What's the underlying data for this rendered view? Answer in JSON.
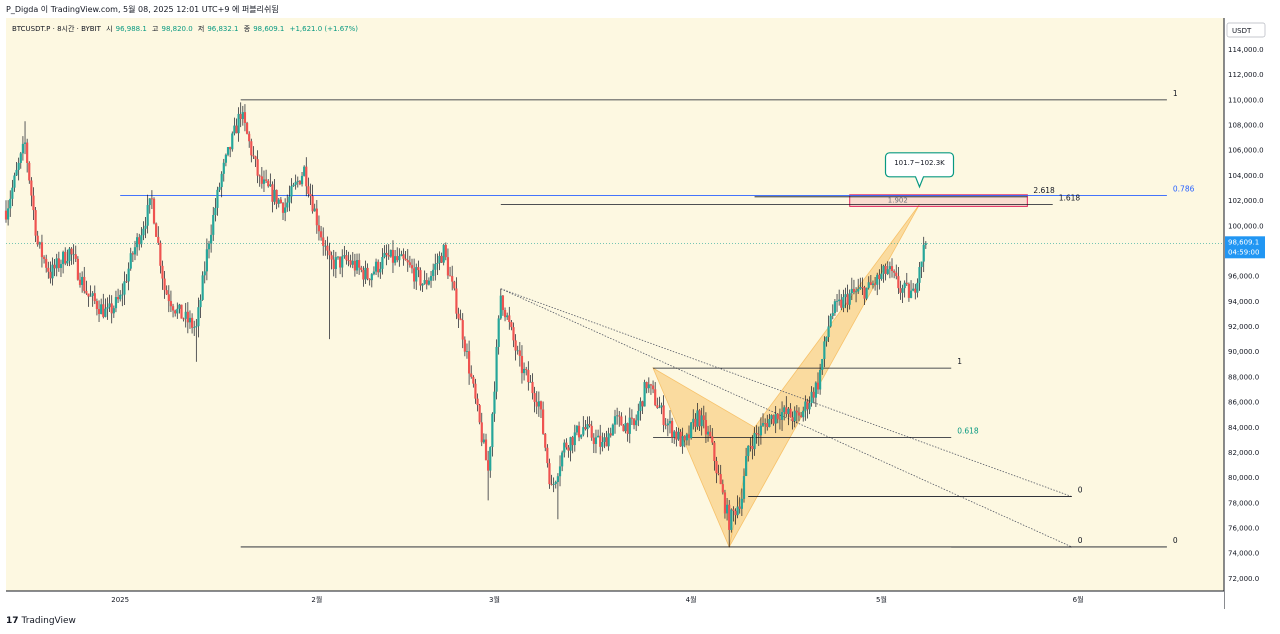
{
  "header": {
    "publish_line": "P_Digda 이 TradingView.com, 5월 08, 2025 12:01 UTC+9 에 퍼블리쉬됨"
  },
  "symbol": {
    "name": "BTCUSDT.P · 8시간 · BYBIT",
    "open_label": "시",
    "open": "96,988.1",
    "high_label": "고",
    "high": "98,820.0",
    "low_label": "저",
    "low": "96,832.1",
    "close_label": "종",
    "close": "98,609.1",
    "change": "+1,621.0 (+1.67%)"
  },
  "footer": {
    "logo_text": "TradingView",
    "logo_mark": "17"
  },
  "colors": {
    "background": "#fdf8e1",
    "up": "#26a69a",
    "down": "#ef5350",
    "harmonic_fill": "#f7c26a",
    "accent_blue": "#2962ff",
    "price_label_bg": "#2196f3",
    "target_box": "#e0245e"
  },
  "chart_data": {
    "type": "candlestick",
    "symbol": "BTCUSDT.P",
    "interval": "8시간",
    "exchange": "BYBIT",
    "price_axis_label": "USDT",
    "ylim": [
      71000,
      116500
    ],
    "y_ticks": [
      "72,000.0",
      "74,000.0",
      "76,000.0",
      "78,000.0",
      "80,000.0",
      "82,000.0",
      "84,000.0",
      "86,000.0",
      "88,000.0",
      "90,000.0",
      "92,000.0",
      "94,000.0",
      "96,000.0",
      "98,000.0",
      "100,000.0",
      "102,000.0",
      "104,000.0",
      "106,000.0",
      "108,000.0",
      "110,000.0",
      "112,000.0",
      "114,000.0"
    ],
    "x_range": [
      "2024-12-14",
      "2025-06-24"
    ],
    "x_ticks": [
      {
        "date": "2025-01-01",
        "label": "2025"
      },
      {
        "date": "2025-02-01",
        "label": "2월"
      },
      {
        "date": "2025-03-01",
        "label": "3월"
      },
      {
        "date": "2025-04-01",
        "label": "4월"
      },
      {
        "date": "2025-05-01",
        "label": "5월"
      },
      {
        "date": "2025-06-01",
        "label": "6월"
      }
    ],
    "last_price": {
      "value": 98609.1,
      "label": "98,609.1",
      "countdown": "04:59:00"
    },
    "price_path": [
      [
        "2024-12-14",
        101200
      ],
      [
        "2024-12-17",
        106500
      ],
      [
        "2024-12-19",
        98500
      ],
      [
        "2024-12-21",
        96200
      ],
      [
        "2024-12-24",
        98000
      ],
      [
        "2024-12-27",
        94400
      ],
      [
        "2024-12-30",
        93000
      ],
      [
        "2025-01-01",
        94200
      ],
      [
        "2025-01-03",
        97800
      ],
      [
        "2025-01-06",
        102000
      ],
      [
        "2025-01-08",
        95000
      ],
      [
        "2025-01-10",
        93200
      ],
      [
        "2025-01-13",
        91800
      ],
      [
        "2025-01-15",
        99000
      ],
      [
        "2025-01-17",
        104000
      ],
      [
        "2025-01-20",
        109000
      ],
      [
        "2025-01-23",
        103500
      ],
      [
        "2025-01-27",
        101500
      ],
      [
        "2025-01-30",
        104500
      ],
      [
        "2025-02-01",
        100500
      ],
      [
        "2025-02-03",
        97000
      ],
      [
        "2025-02-06",
        97200
      ],
      [
        "2025-02-09",
        96000
      ],
      [
        "2025-02-12",
        97500
      ],
      [
        "2025-02-15",
        97000
      ],
      [
        "2025-02-18",
        95300
      ],
      [
        "2025-02-21",
        98000
      ],
      [
        "2025-02-24",
        91500
      ],
      [
        "2025-02-26",
        86000
      ],
      [
        "2025-02-28",
        80500
      ],
      [
        "2025-03-02",
        94500
      ],
      [
        "2025-03-05",
        89000
      ],
      [
        "2025-03-08",
        86000
      ],
      [
        "2025-03-10",
        79000
      ],
      [
        "2025-03-12",
        82500
      ],
      [
        "2025-03-15",
        84000
      ],
      [
        "2025-03-18",
        82500
      ],
      [
        "2025-03-20",
        84500
      ],
      [
        "2025-03-23",
        84000
      ],
      [
        "2025-03-25",
        87500
      ],
      [
        "2025-03-28",
        84500
      ],
      [
        "2025-03-31",
        82500
      ],
      [
        "2025-04-02",
        85000
      ],
      [
        "2025-04-04",
        83000
      ],
      [
        "2025-04-06",
        78500
      ],
      [
        "2025-04-07",
        76500
      ],
      [
        "2025-04-09",
        78500
      ],
      [
        "2025-04-10",
        82500
      ],
      [
        "2025-04-13",
        84500
      ],
      [
        "2025-04-15",
        85200
      ],
      [
        "2025-04-18",
        84700
      ],
      [
        "2025-04-21",
        87500
      ],
      [
        "2025-04-23",
        93000
      ],
      [
        "2025-04-26",
        94500
      ],
      [
        "2025-04-29",
        95000
      ],
      [
        "2025-05-02",
        96500
      ],
      [
        "2025-05-04",
        95000
      ],
      [
        "2025-05-06",
        94500
      ],
      [
        "2025-05-07",
        97000
      ],
      [
        "2025-05-08",
        98609
      ]
    ],
    "spikes": [
      {
        "date": "2024-12-17",
        "high": 108300
      },
      {
        "date": "2025-01-20",
        "high": 109800
      },
      {
        "date": "2025-01-13",
        "low": 89200
      },
      {
        "date": "2025-02-03",
        "low": 91000
      },
      {
        "date": "2025-02-28",
        "low": 78200
      },
      {
        "date": "2025-03-02",
        "high": 95000
      },
      {
        "date": "2025-03-11",
        "low": 76700
      },
      {
        "date": "2025-04-07",
        "low": 74500
      }
    ],
    "horizontal_lines": [
      {
        "from": "2025-01-20",
        "to": "2025-06-15",
        "price": 110000,
        "label": "1",
        "label_color": "#131722"
      },
      {
        "from": "2025-01-20",
        "to": "2025-06-15",
        "price": 74500,
        "label": "0",
        "label_color": "#131722"
      },
      {
        "from": "2025-01-01",
        "to": "2025-06-15",
        "price": 102400,
        "label": "0.786",
        "label_color": "#2962ff"
      },
      {
        "from": "2025-03-26",
        "to": "2025-05-12",
        "price": 88700,
        "label": "1",
        "label_color": "#131722"
      },
      {
        "from": "2025-03-26",
        "to": "2025-05-12",
        "price": 83200,
        "label": "0.618",
        "label_color": "#089981"
      },
      {
        "from": "2025-04-10",
        "to": "2025-05-31",
        "price": 78500,
        "label": "0",
        "label_color": "#131722"
      },
      {
        "from": "2025-05-12",
        "to": "2025-05-31",
        "price": 74500,
        "label": "0",
        "label_color": "#131722"
      },
      {
        "from": "2025-03-02",
        "to": "2025-05-28",
        "price": 101700,
        "label": "1.618",
        "label_color": "#131722"
      },
      {
        "from": "2025-04-11",
        "to": "2025-05-24",
        "price": 102300,
        "label": "2.618",
        "label_color": "#131722"
      }
    ],
    "harmonic_pattern": {
      "label": "1.902",
      "points": [
        [
          "2025-03-26",
          88700
        ],
        [
          "2025-04-07",
          74500
        ],
        [
          "2025-04-11",
          84000
        ],
        [
          "2025-05-07",
          101700
        ]
      ]
    },
    "target_zone": {
      "from": "2025-04-26",
      "to": "2025-05-24",
      "low": 101700,
      "high": 102300,
      "label": "101.7~102.3K"
    },
    "dotted_lines": [
      {
        "from": [
          "2025-03-02",
          95000
        ],
        "to": [
          "2025-05-31",
          74500
        ]
      },
      {
        "from": [
          "2025-03-02",
          95000
        ],
        "to": [
          "2025-05-31",
          78500
        ]
      }
    ]
  }
}
